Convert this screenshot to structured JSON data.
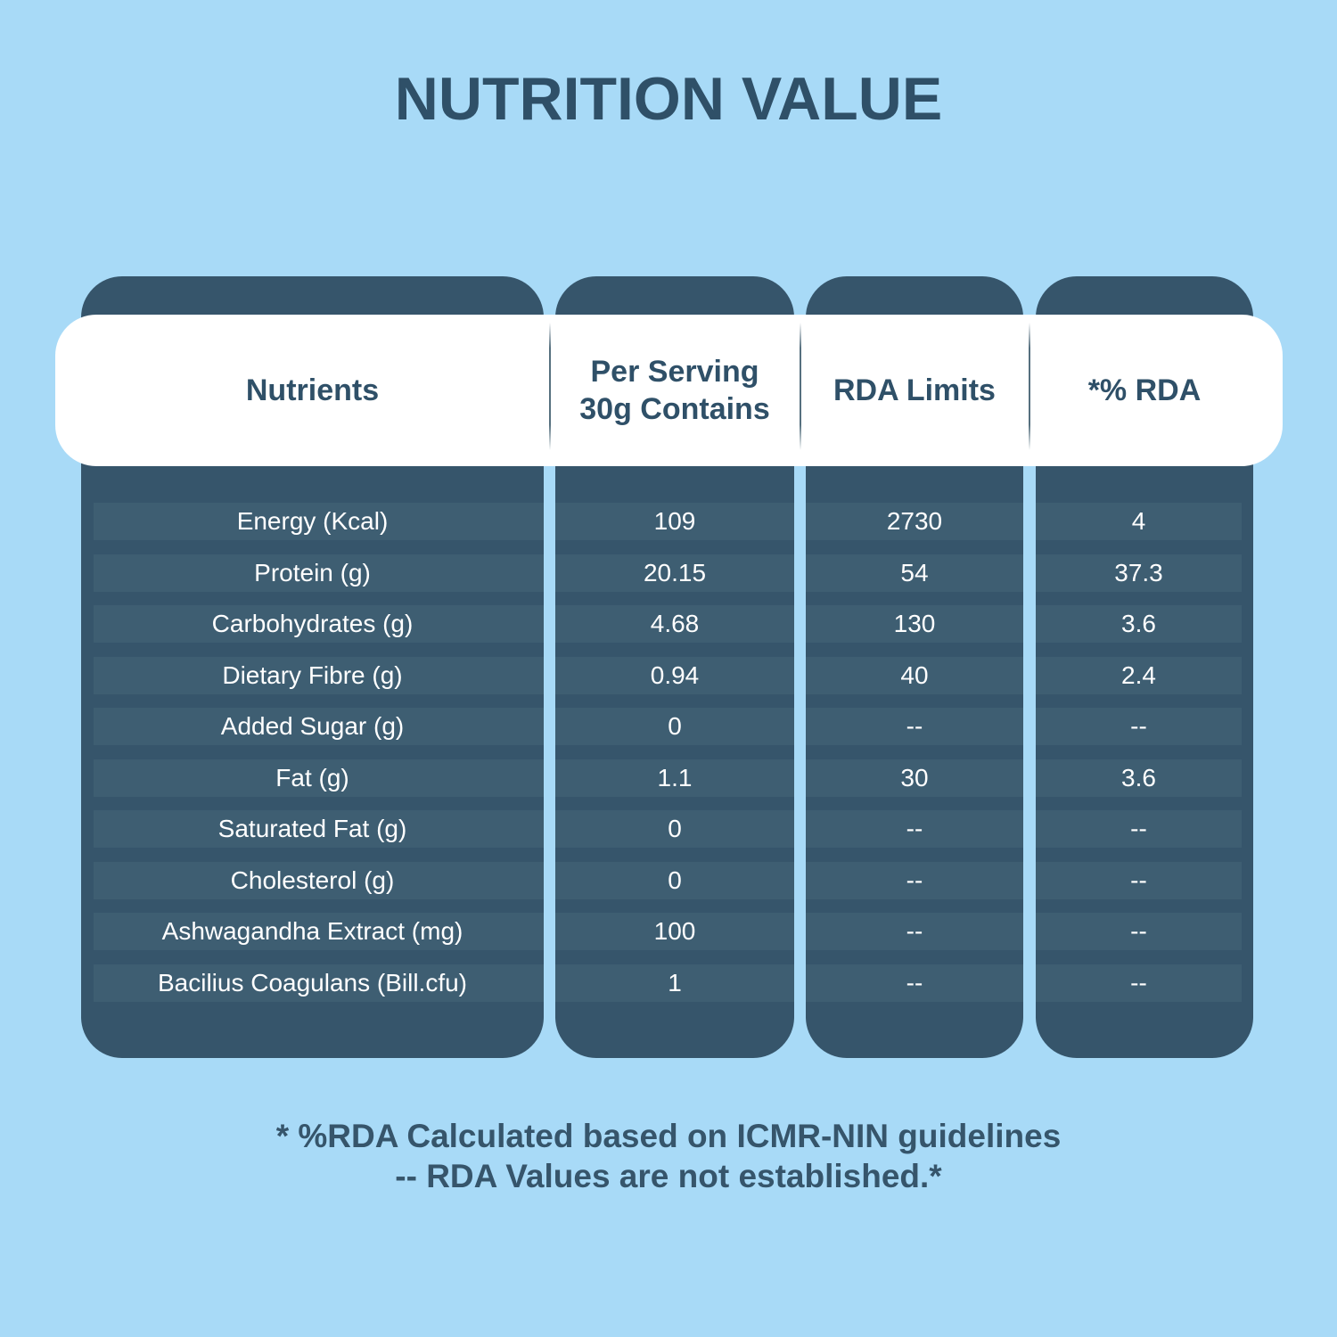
{
  "title": "NUTRITION VALUE",
  "headers": [
    "Nutrients",
    "Per Serving 30g Contains",
    "RDA Limits",
    "*% RDA"
  ],
  "rows": [
    {
      "nutrient": "Energy (Kcal)",
      "per_serving": "109",
      "rda_limit": "2730",
      "rda_pct": "4"
    },
    {
      "nutrient": "Protein (g)",
      "per_serving": "20.15",
      "rda_limit": "54",
      "rda_pct": "37.3"
    },
    {
      "nutrient": "Carbohydrates (g)",
      "per_serving": "4.68",
      "rda_limit": "130",
      "rda_pct": "3.6"
    },
    {
      "nutrient": "Dietary Fibre (g)",
      "per_serving": "0.94",
      "rda_limit": "40",
      "rda_pct": "2.4"
    },
    {
      "nutrient": "Added Sugar (g)",
      "per_serving": "0",
      "rda_limit": "--",
      "rda_pct": "--"
    },
    {
      "nutrient": "Fat (g)",
      "per_serving": "1.1",
      "rda_limit": "30",
      "rda_pct": "3.6"
    },
    {
      "nutrient": "Saturated Fat (g)",
      "per_serving": "0",
      "rda_limit": "--",
      "rda_pct": "--"
    },
    {
      "nutrient": "Cholesterol (g)",
      "per_serving": "0",
      "rda_limit": "--",
      "rda_pct": "--"
    },
    {
      "nutrient": "Ashwagandha Extract (mg)",
      "per_serving": "100",
      "rda_limit": "--",
      "rda_pct": "--"
    },
    {
      "nutrient": "Bacilius Coagulans (Bill.cfu)",
      "per_serving": "1",
      "rda_limit": "--",
      "rda_pct": "--"
    }
  ],
  "footnotes": [
    "* %RDA Calculated based on ICMR-NIN guidelines",
    "-- RDA Values are not established.*"
  ],
  "colors": {
    "background": "#a8daf7",
    "column": "#36556b",
    "row": "#3e5e72",
    "text": "#2f5068"
  }
}
